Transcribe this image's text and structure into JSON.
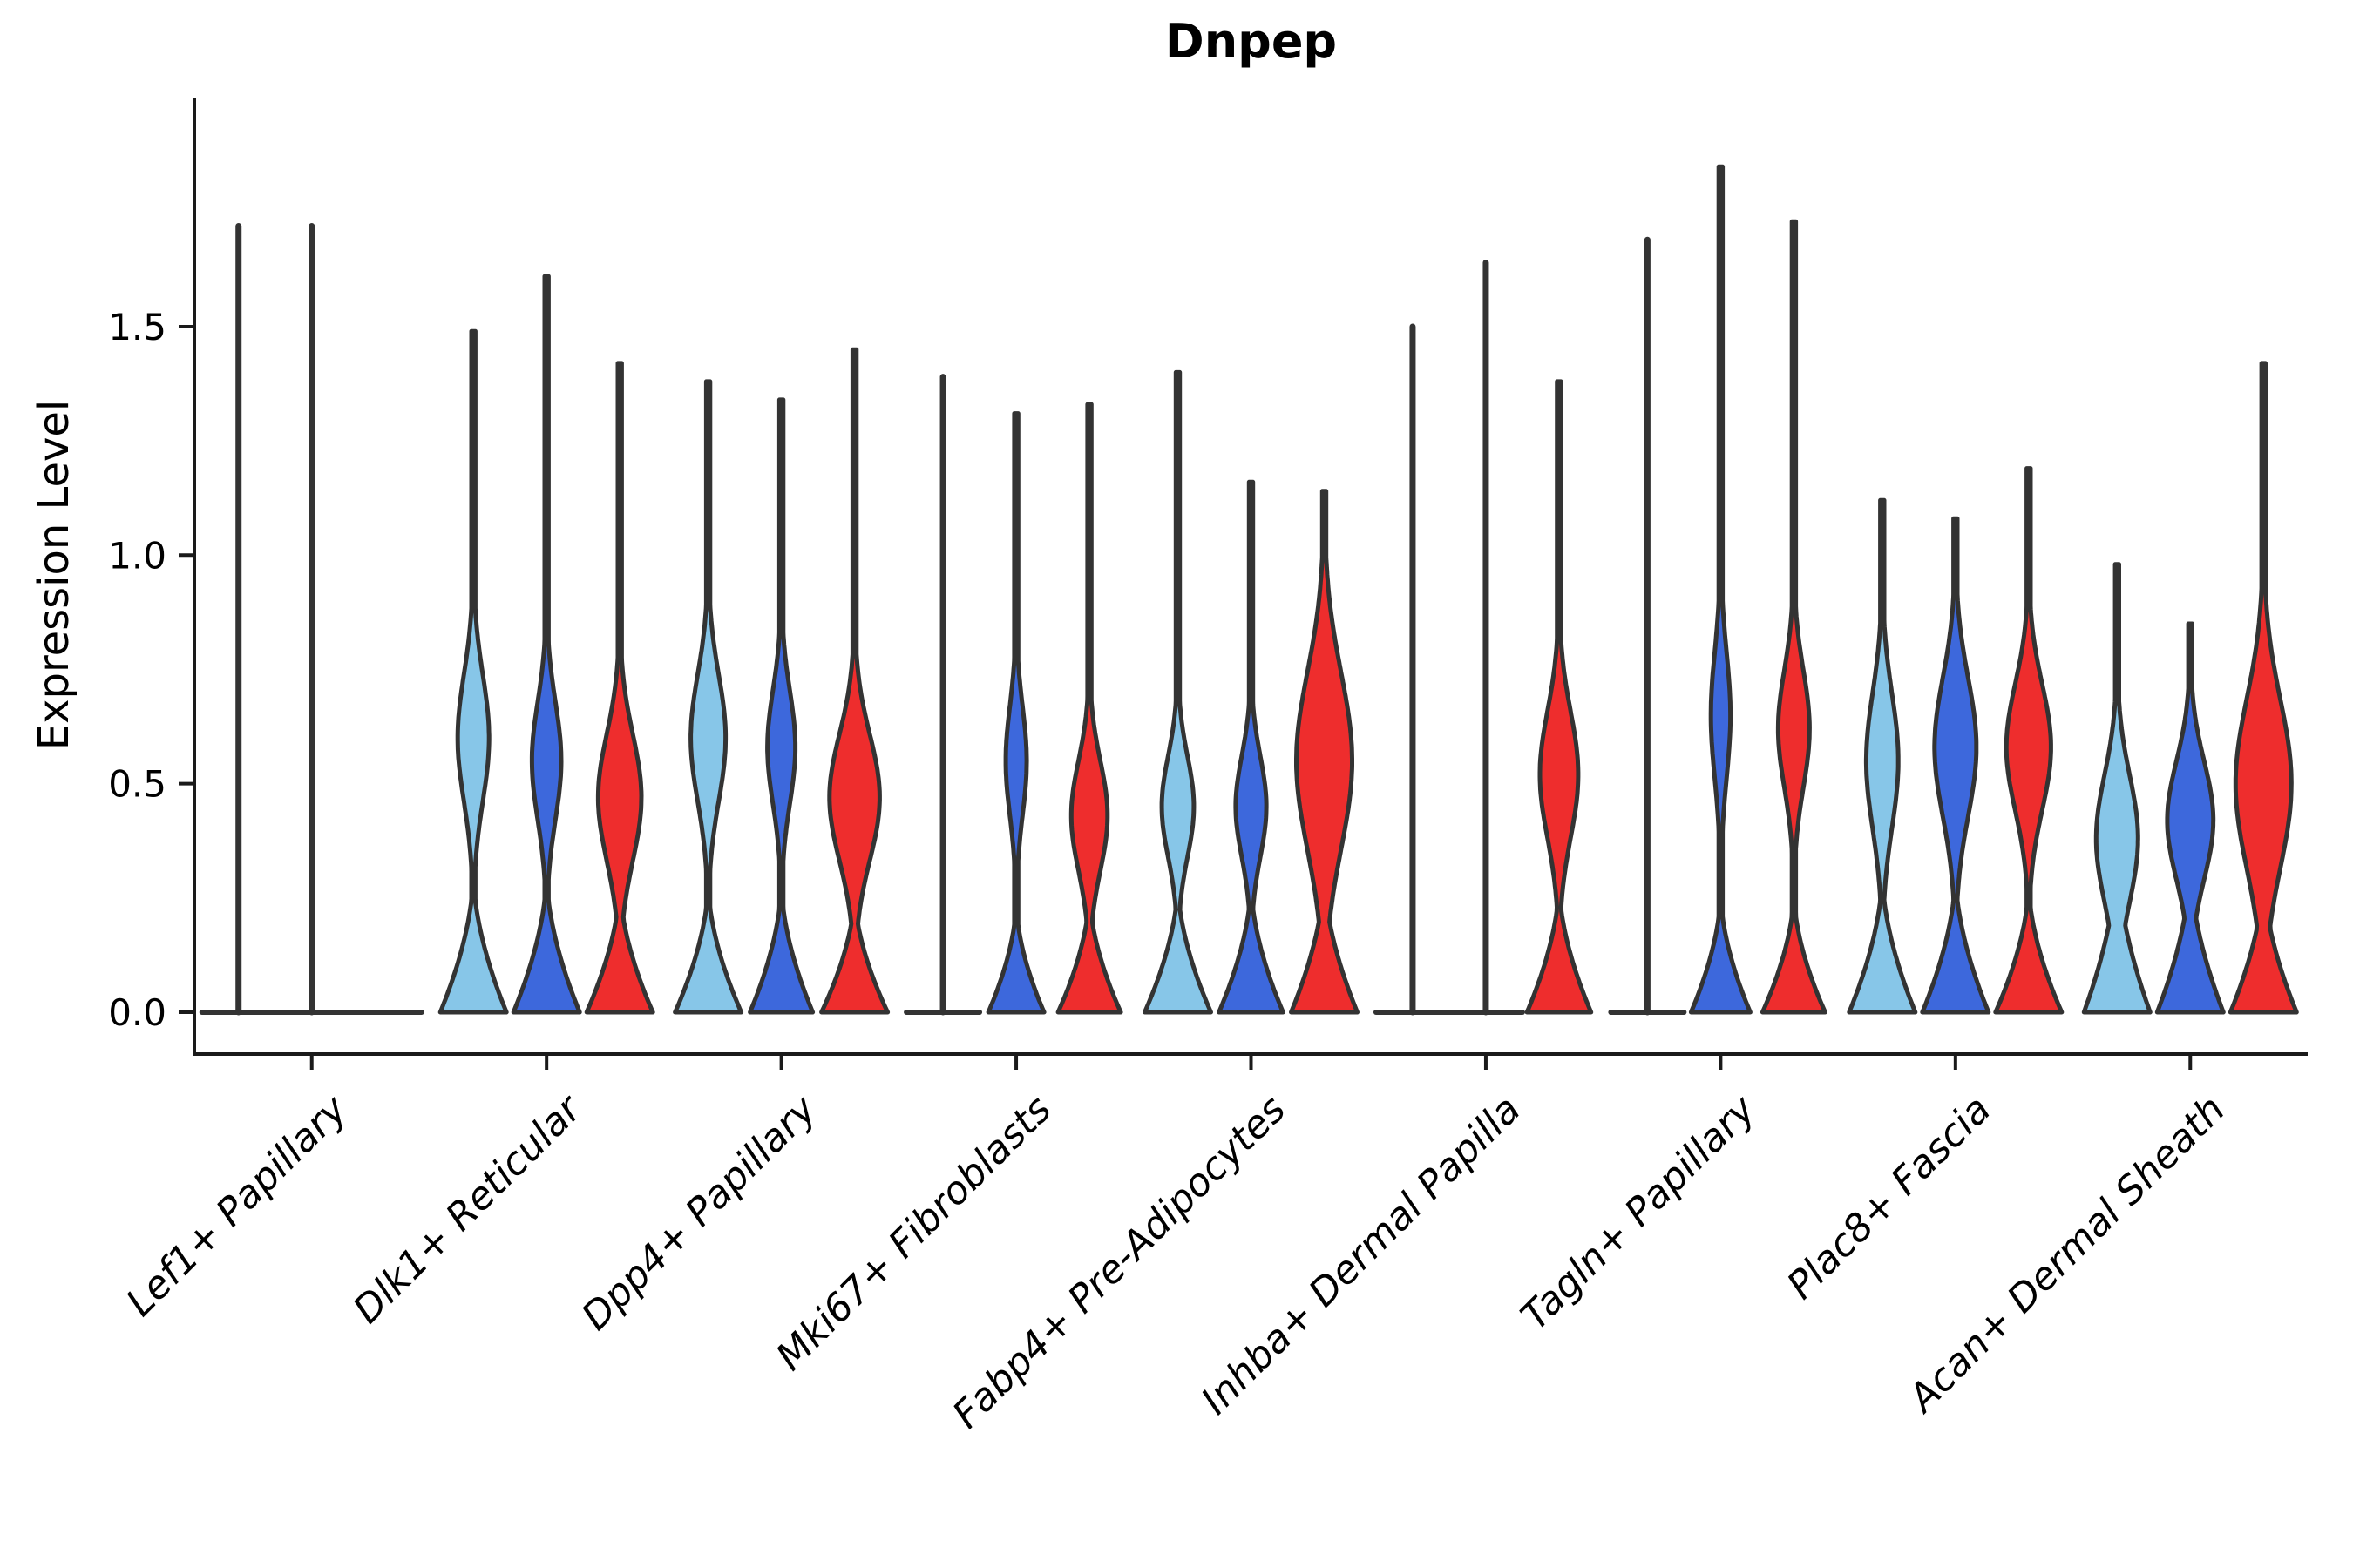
{
  "title": "Dnpep",
  "y_axis": {
    "label": "Expression Level",
    "ticks": [
      {
        "label": "0.0",
        "value": 0.0
      },
      {
        "label": "0.5",
        "value": 0.5
      },
      {
        "label": "1.0",
        "value": 1.0
      },
      {
        "label": "1.5",
        "value": 1.5
      }
    ],
    "range": [
      -0.09,
      2.0
    ]
  },
  "colors": {
    "light_blue": "#87C6E8",
    "blue": "#3D68DC",
    "red": "#EE2D2D",
    "violin_edge": "#333333",
    "spine": "#1a1a1a",
    "text": "#000000"
  },
  "chart_data": {
    "type": "violin",
    "title": "Dnpep",
    "xlabel": "",
    "ylabel": "Expression Level",
    "ylim": [
      -0.09,
      2.0
    ],
    "yticks": [
      "0.0",
      "0.5",
      "1.0",
      "1.5"
    ],
    "grid": false,
    "legend_position": "none",
    "categories": [
      "Lef1+ Papillary",
      "Dlk1+ Reticular",
      "Dpp4+ Papillary",
      "Mki67+ Fibroblasts",
      "Fabp4+ Pre-Adipocytes",
      "Inhba+ Dermal Papilla",
      "Tagln+ Papillary",
      "Plac8+ Fascia",
      "Acan+ Dermal Sheath"
    ],
    "series": [
      {
        "name": "light-blue",
        "color": "#87C6E8",
        "max_expression": [
          1.72,
          1.49,
          1.38,
          1.39,
          1.4,
          1.5,
          1.69,
          1.12,
          0.98
        ],
        "violins": [
          {
            "max": 1.72,
            "flat": true
          },
          {
            "max": 1.49,
            "base": {
              "h": 0.3,
              "w": 0.95
            },
            "bulge": {
              "c": 0.6,
              "e": 0.3,
              "w": 0.45
            }
          },
          {
            "max": 1.38,
            "base": {
              "h": 0.28,
              "w": 0.95
            },
            "bulge": {
              "c": 0.6,
              "e": 0.3,
              "w": 0.5
            }
          },
          {
            "max": 1.39,
            "flat": true
          },
          {
            "max": 1.4,
            "base": {
              "h": 0.28,
              "w": 0.95
            },
            "bulge": {
              "c": 0.45,
              "e": 0.24,
              "w": 0.46
            }
          },
          {
            "max": 1.5,
            "flat": true
          },
          {
            "max": 1.69,
            "flat": true
          },
          {
            "max": 1.12,
            "base": {
              "h": 0.3,
              "w": 0.95
            },
            "bulge": {
              "c": 0.55,
              "e": 0.32,
              "w": 0.46
            }
          },
          {
            "max": 0.98,
            "base": {
              "h": 0.34,
              "w": 0.95
            },
            "bulge": {
              "c": 0.38,
              "e": 0.3,
              "w": 0.6
            }
          }
        ]
      },
      {
        "name": "blue",
        "color": "#3D68DC",
        "max_expression": [
          1.72,
          1.61,
          1.34,
          1.31,
          1.16,
          1.64,
          1.85,
          1.08,
          0.85
        ],
        "violins": [
          {
            "max": 1.72,
            "flat": true
          },
          {
            "max": 1.61,
            "base": {
              "h": 0.3,
              "w": 0.95
            },
            "bulge": {
              "c": 0.55,
              "e": 0.28,
              "w": 0.42
            }
          },
          {
            "max": 1.34,
            "base": {
              "h": 0.28,
              "w": 0.9
            },
            "bulge": {
              "c": 0.58,
              "e": 0.27,
              "w": 0.4
            }
          },
          {
            "max": 1.31,
            "base": {
              "h": 0.24,
              "w": 0.8
            },
            "bulge": {
              "c": 0.55,
              "e": 0.26,
              "w": 0.3
            }
          },
          {
            "max": 1.16,
            "base": {
              "h": 0.28,
              "w": 0.92
            },
            "bulge": {
              "c": 0.45,
              "e": 0.24,
              "w": 0.44
            }
          },
          {
            "max": 1.64,
            "flat": true
          },
          {
            "max": 1.85,
            "base": {
              "h": 0.26,
              "w": 0.85
            },
            "bulge": {
              "c": 0.65,
              "e": 0.3,
              "w": 0.28
            }
          },
          {
            "max": 1.08,
            "base": {
              "h": 0.3,
              "w": 0.95
            },
            "bulge": {
              "c": 0.58,
              "e": 0.33,
              "w": 0.6
            }
          },
          {
            "max": 0.85,
            "base": {
              "h": 0.32,
              "w": 0.95
            },
            "bulge": {
              "c": 0.42,
              "e": 0.28,
              "w": 0.66
            }
          }
        ]
      },
      {
        "name": "red",
        "color": "#EE2D2D",
        "max_expression": [
          0.0,
          1.42,
          1.45,
          1.33,
          1.14,
          1.38,
          1.73,
          1.19,
          1.42
        ],
        "violins": [
          {
            "max": 0.0,
            "flat": true
          },
          {
            "max": 1.42,
            "base": {
              "h": 0.28,
              "w": 0.95
            },
            "bulge": {
              "c": 0.47,
              "e": 0.3,
              "w": 0.62
            }
          },
          {
            "max": 1.45,
            "base": {
              "h": 0.26,
              "w": 0.95
            },
            "bulge": {
              "c": 0.47,
              "e": 0.3,
              "w": 0.72
            }
          },
          {
            "max": 1.33,
            "base": {
              "h": 0.26,
              "w": 0.9
            },
            "bulge": {
              "c": 0.43,
              "e": 0.26,
              "w": 0.52
            }
          },
          {
            "max": 1.14,
            "base": {
              "h": 0.3,
              "w": 0.95
            },
            "bulge": {
              "c": 0.55,
              "e": 0.42,
              "w": 0.8
            }
          },
          {
            "max": 1.38,
            "base": {
              "h": 0.28,
              "w": 0.92
            },
            "bulge": {
              "c": 0.52,
              "e": 0.3,
              "w": 0.55
            }
          },
          {
            "max": 1.73,
            "base": {
              "h": 0.26,
              "w": 0.9
            },
            "bulge": {
              "c": 0.62,
              "e": 0.28,
              "w": 0.45
            }
          },
          {
            "max": 1.19,
            "base": {
              "h": 0.28,
              "w": 0.95
            },
            "bulge": {
              "c": 0.58,
              "e": 0.3,
              "w": 0.64
            }
          },
          {
            "max": 1.42,
            "base": {
              "h": 0.3,
              "w": 0.95
            },
            "bulge": {
              "c": 0.5,
              "e": 0.4,
              "w": 0.8
            }
          }
        ]
      }
    ]
  }
}
